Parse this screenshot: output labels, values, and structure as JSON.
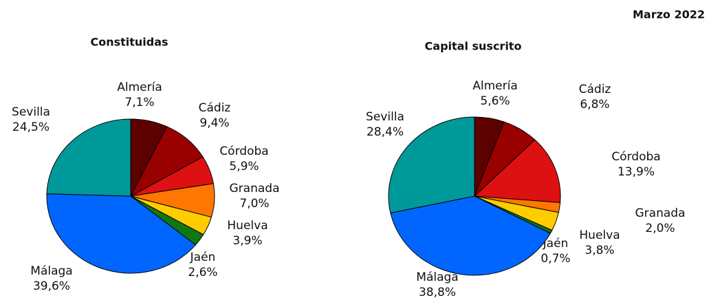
{
  "header": {
    "date": "Marzo 2022"
  },
  "chart_data": [
    {
      "type": "pie",
      "title": "Constituidas",
      "categories": [
        "Almería",
        "Cádiz",
        "Córdoba",
        "Granada",
        "Huelva",
        "Jaén",
        "Málaga",
        "Sevilla"
      ],
      "values": [
        7.1,
        9.4,
        5.9,
        7.0,
        3.9,
        2.6,
        39.6,
        24.5
      ],
      "value_labels": [
        "7,1%",
        "9,4%",
        "5,9%",
        "7,0%",
        "3,9%",
        "2,6%",
        "39,6%",
        "24,5%"
      ],
      "colors": [
        "#5c0000",
        "#990000",
        "#dd1111",
        "#ff7700",
        "#ffcc00",
        "#117711",
        "#0066ff",
        "#009999"
      ]
    },
    {
      "type": "pie",
      "title": "Capital suscrito",
      "categories": [
        "Almería",
        "Cádiz",
        "Córdoba",
        "Granada",
        "Huelva",
        "Jaén",
        "Málaga",
        "Sevilla"
      ],
      "values": [
        5.6,
        6.8,
        13.9,
        2.0,
        3.8,
        0.7,
        38.8,
        28.4
      ],
      "value_labels": [
        "5,6%",
        "6,8%",
        "13,9%",
        "2,0%",
        "3,8%",
        "0,7%",
        "38,8%",
        "28,4%"
      ],
      "colors": [
        "#5c0000",
        "#990000",
        "#dd1111",
        "#ff7700",
        "#ffcc00",
        "#117711",
        "#0066ff",
        "#009999"
      ]
    }
  ]
}
